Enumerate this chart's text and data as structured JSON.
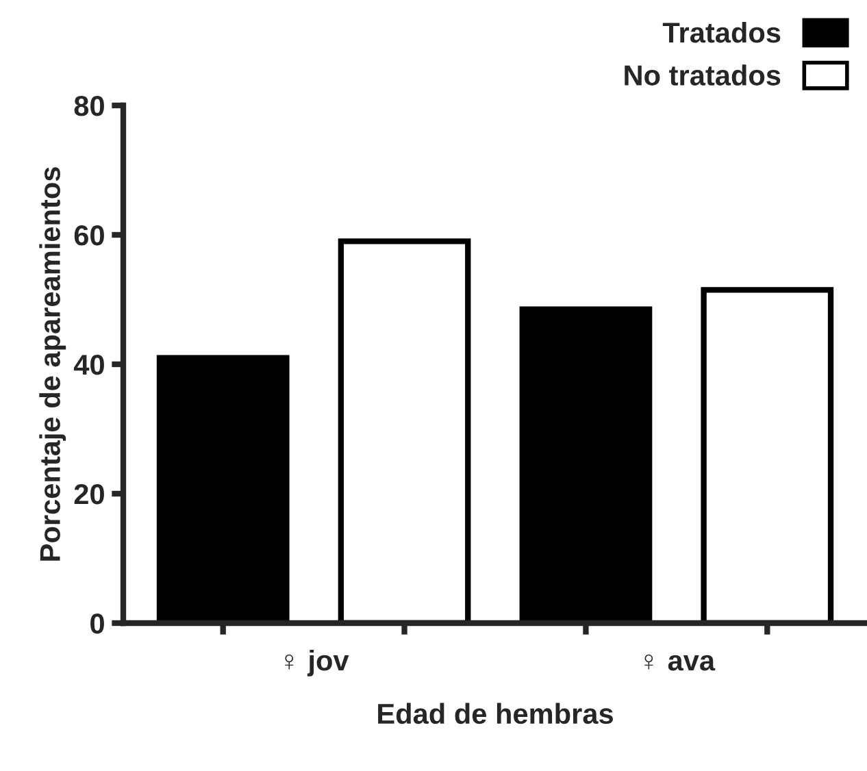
{
  "chart_data": {
    "type": "bar",
    "xlabel": "Edad de hembras",
    "ylabel": "Porcentaje de apareamientos",
    "categories": [
      "♀ jov",
      "♀ ava"
    ],
    "series": [
      {
        "name": "Tratados",
        "color": "#000000",
        "values": [
          41,
          48.5
        ]
      },
      {
        "name": "No tratados",
        "color": "#ffffff",
        "values": [
          59,
          51.5
        ]
      }
    ],
    "ylim": [
      0,
      80
    ],
    "yticks": [
      0,
      20,
      40,
      60,
      80
    ],
    "grid": false,
    "legend": "top right"
  }
}
